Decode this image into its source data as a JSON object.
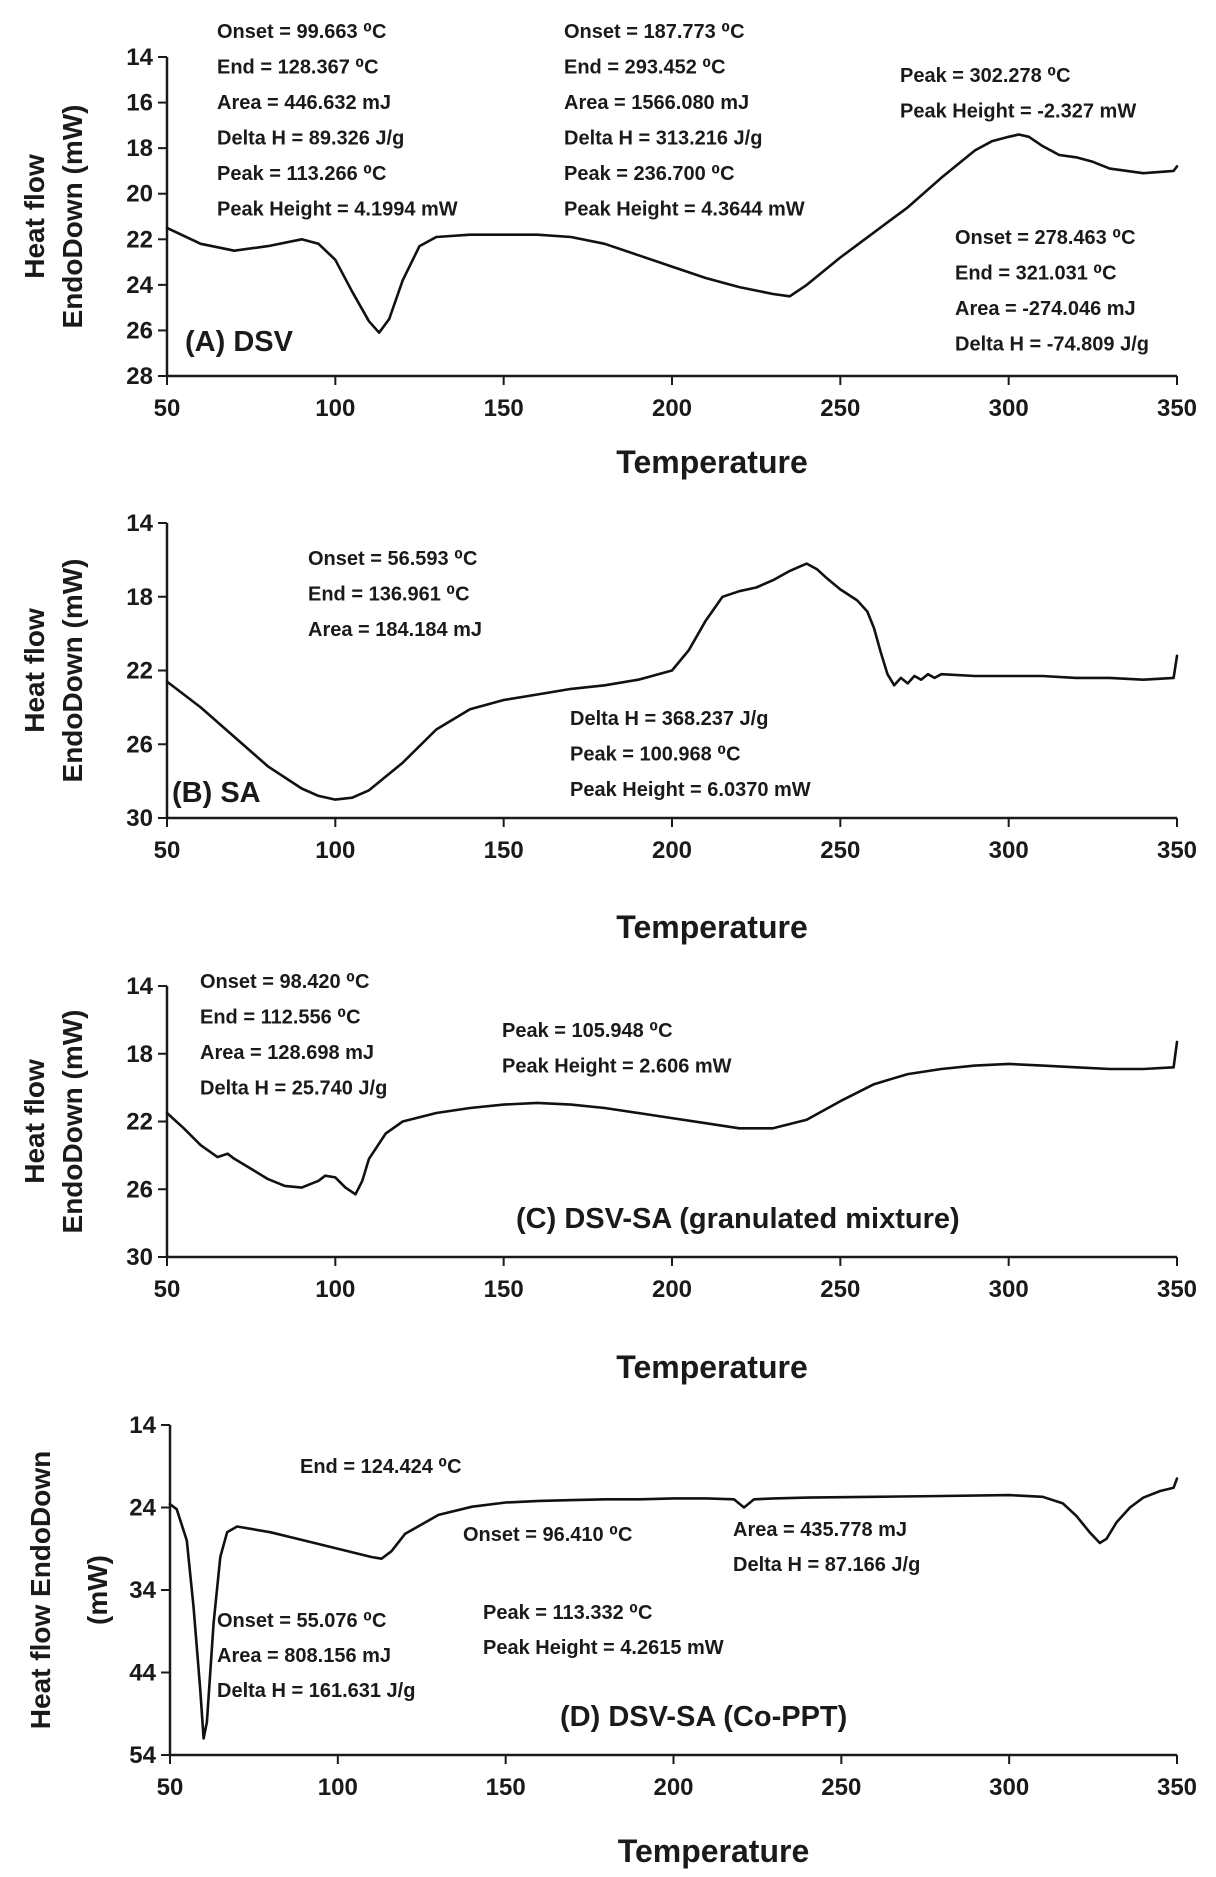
{
  "chart_data": [
    {
      "type": "line",
      "panel_label": "(A) DSV",
      "xlabel": "Temperature",
      "ylabel_lines": [
        "Heat flow",
        "EndoDown (mW)"
      ],
      "xlim": [
        50,
        350
      ],
      "ylim": [
        14,
        28
      ],
      "y_inverted": true,
      "x_ticks": [
        50,
        100,
        150,
        200,
        250,
        300,
        350
      ],
      "y_ticks": [
        14,
        16,
        18,
        20,
        22,
        24,
        26,
        28
      ],
      "series": [
        {
          "x": [
            50,
            60,
            70,
            80,
            90,
            95,
            100,
            105,
            110,
            113,
            116,
            120,
            125,
            130,
            140,
            150,
            160,
            170,
            180,
            190,
            200,
            210,
            220,
            230,
            235,
            240,
            250,
            260,
            270,
            280,
            290,
            295,
            300,
            303,
            306,
            310,
            315,
            320,
            325,
            330,
            340,
            349,
            350
          ],
          "y": [
            21.5,
            22.2,
            22.5,
            22.3,
            22.0,
            22.2,
            22.9,
            24.3,
            25.6,
            26.1,
            25.5,
            23.8,
            22.3,
            21.9,
            21.8,
            21.8,
            21.8,
            21.9,
            22.2,
            22.7,
            23.2,
            23.7,
            24.1,
            24.4,
            24.5,
            24.0,
            22.8,
            21.7,
            20.6,
            19.3,
            18.1,
            17.7,
            17.5,
            17.4,
            17.5,
            17.9,
            18.3,
            18.4,
            18.6,
            18.9,
            19.1,
            19.0,
            18.8
          ]
        }
      ],
      "annotations": [
        {
          "lines": [
            "Onset = 99.663 ⁰C",
            "End = 128.367 ⁰C",
            "Area = 446.632 mJ",
            "Delta H = 89.326 J/g",
            "Peak = 113.266 ⁰C",
            "Peak Height = 4.1994 mW"
          ]
        },
        {
          "lines": [
            "Onset = 187.773 ⁰C",
            "End = 293.452 ⁰C",
            "Area = 1566.080 mJ",
            "Delta H = 313.216 J/g",
            "Peak = 236.700 ⁰C",
            "Peak Height = 4.3644 mW"
          ]
        },
        {
          "lines": [
            "Peak = 302.278 ⁰C",
            "Peak Height = -2.327 mW"
          ]
        },
        {
          "lines": [
            "Onset = 278.463 ⁰C",
            "End = 321.031 ⁰C",
            "Area = -274.046 mJ",
            "Delta H = -74.809 J/g"
          ]
        }
      ]
    },
    {
      "type": "line",
      "panel_label": "(B) SA",
      "xlabel": "Temperature",
      "ylabel_lines": [
        "Heat flow",
        "EndoDown (mW)"
      ],
      "xlim": [
        50,
        350
      ],
      "ylim": [
        14,
        30
      ],
      "y_inverted": true,
      "x_ticks": [
        50,
        100,
        150,
        200,
        250,
        300,
        350
      ],
      "y_ticks": [
        14,
        18,
        22,
        26,
        30
      ],
      "series": [
        {
          "x": [
            50,
            60,
            70,
            80,
            90,
            95,
            100,
            105,
            110,
            120,
            130,
            140,
            150,
            160,
            170,
            180,
            190,
            200,
            205,
            210,
            215,
            220,
            225,
            230,
            235,
            240,
            243,
            246,
            250,
            255,
            258,
            260,
            262,
            264,
            266,
            268,
            270,
            272,
            274,
            276,
            278,
            280,
            290,
            300,
            310,
            320,
            330,
            340,
            349,
            350
          ],
          "y": [
            22.6,
            24.0,
            25.6,
            27.2,
            28.4,
            28.8,
            29.0,
            28.9,
            28.5,
            27.0,
            25.2,
            24.1,
            23.6,
            23.3,
            23.0,
            22.8,
            22.5,
            22.0,
            20.9,
            19.3,
            18.0,
            17.7,
            17.5,
            17.1,
            16.6,
            16.2,
            16.5,
            17.0,
            17.6,
            18.2,
            18.8,
            19.7,
            21.0,
            22.2,
            22.8,
            22.4,
            22.7,
            22.3,
            22.5,
            22.2,
            22.4,
            22.2,
            22.3,
            22.3,
            22.3,
            22.4,
            22.4,
            22.5,
            22.4,
            21.2
          ]
        }
      ],
      "annotations": [
        {
          "lines": [
            "Onset = 56.593 ⁰C",
            "End = 136.961 ⁰C",
            "Area = 184.184 mJ"
          ]
        },
        {
          "lines": [
            "Delta H = 368.237 J/g",
            "Peak = 100.968 ⁰C",
            "Peak Height = 6.0370 mW"
          ]
        }
      ]
    },
    {
      "type": "line",
      "panel_label": "(C) DSV-SA (granulated mixture)",
      "xlabel": "Temperature",
      "ylabel_lines": [
        "Heat flow",
        "EndoDown (mW)"
      ],
      "xlim": [
        50,
        350
      ],
      "ylim": [
        14,
        30
      ],
      "y_inverted": true,
      "x_ticks": [
        50,
        100,
        150,
        200,
        250,
        300,
        350
      ],
      "y_ticks": [
        14,
        18,
        22,
        26,
        30
      ],
      "series": [
        {
          "x": [
            50,
            55,
            60,
            65,
            68,
            70,
            75,
            80,
            85,
            90,
            95,
            97,
            100,
            103,
            106,
            108,
            110,
            115,
            120,
            130,
            140,
            150,
            160,
            170,
            180,
            190,
            200,
            210,
            220,
            230,
            240,
            250,
            260,
            270,
            280,
            290,
            300,
            310,
            320,
            330,
            340,
            349,
            350
          ],
          "y": [
            21.5,
            22.4,
            23.4,
            24.1,
            23.9,
            24.2,
            24.8,
            25.4,
            25.8,
            25.9,
            25.5,
            25.2,
            25.3,
            25.9,
            26.3,
            25.5,
            24.2,
            22.7,
            22.0,
            21.5,
            21.2,
            21.0,
            20.9,
            21.0,
            21.2,
            21.5,
            21.8,
            22.1,
            22.4,
            22.4,
            21.9,
            20.8,
            19.8,
            19.2,
            18.9,
            18.7,
            18.6,
            18.7,
            18.8,
            18.9,
            18.9,
            18.8,
            17.3
          ]
        }
      ],
      "annotations": [
        {
          "lines": [
            "Onset = 98.420 ⁰C",
            "End = 112.556 ⁰C",
            "Area = 128.698 mJ",
            "Delta H = 25.740 J/g"
          ]
        },
        {
          "lines": [
            "Peak = 105.948 ⁰C",
            "Peak Height = 2.606 mW"
          ]
        }
      ]
    },
    {
      "type": "line",
      "panel_label": "(D) DSV-SA (Co-PPT)",
      "xlabel": "Temperature",
      "ylabel_lines": [
        "Heat flow  EndoDown",
        "(mW)"
      ],
      "xlim": [
        50,
        350
      ],
      "ylim": [
        14,
        54
      ],
      "y_inverted": true,
      "x_ticks": [
        50,
        100,
        150,
        200,
        250,
        300,
        350
      ],
      "y_ticks": [
        14,
        24,
        34,
        44,
        54
      ],
      "series": [
        {
          "x": [
            50,
            52,
            55,
            57,
            59,
            60,
            61,
            63,
            65,
            67,
            70,
            80,
            90,
            100,
            110,
            113,
            116,
            120,
            130,
            140,
            150,
            160,
            170,
            180,
            190,
            200,
            210,
            218,
            221,
            224,
            230,
            240,
            260,
            280,
            300,
            310,
            316,
            320,
            324,
            327,
            329,
            332,
            336,
            340,
            345,
            349,
            350
          ],
          "y": [
            23.6,
            24.2,
            28.0,
            36.0,
            46.0,
            52.0,
            50.0,
            38.0,
            30.0,
            27.0,
            26.3,
            27.0,
            28.0,
            29.0,
            30.0,
            30.2,
            29.3,
            27.2,
            24.9,
            23.9,
            23.4,
            23.2,
            23.1,
            23.0,
            23.0,
            22.9,
            22.9,
            23.0,
            24.0,
            23.0,
            22.9,
            22.8,
            22.7,
            22.6,
            22.5,
            22.7,
            23.5,
            25.0,
            27.0,
            28.3,
            27.8,
            25.8,
            24.0,
            22.8,
            22.0,
            21.6,
            20.5
          ]
        }
      ],
      "annotations": [
        {
          "lines": [
            "End = 124.424 ⁰C"
          ]
        },
        {
          "lines": [
            "Onset = 96.410 ⁰C"
          ]
        },
        {
          "lines": [
            "Area = 435.778 mJ",
            "Delta H = 87.166 J/g"
          ]
        },
        {
          "lines": [
            "Onset = 55.076 ⁰C",
            "Area = 808.156 mJ",
            "Delta H = 161.631 J/g"
          ]
        },
        {
          "lines": [
            "Peak = 113.332 ⁰C",
            "Peak Height = 4.2615 mW"
          ]
        }
      ]
    }
  ]
}
